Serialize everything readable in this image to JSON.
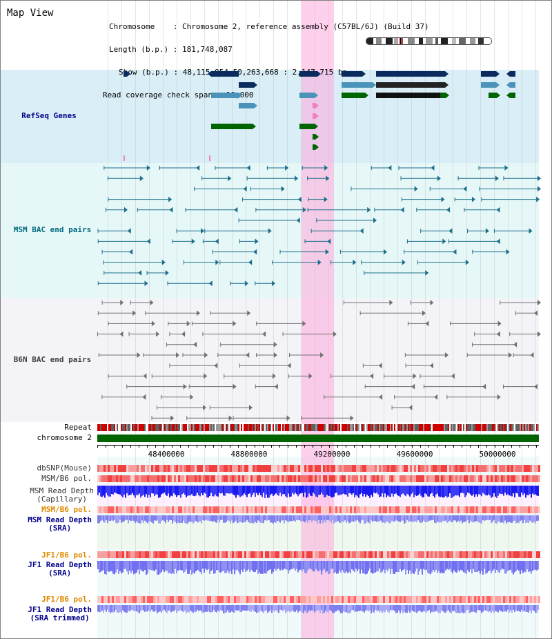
{
  "header": {
    "title": "Map View",
    "info_lines": [
      "Chromosome    : Chromosome 2, reference assembly (C57BL/6J) (Build 37)",
      "Length (b.p.) : 181,748,087",
      "Show (b.p.) : 48,115,954-50,263,668 : 2,147,715 bp",
      "Read coverage check span : 10,000"
    ]
  },
  "tracks": {
    "refseq": "RefSeq Genes",
    "msm_bac": "MSM BAC end pairs",
    "b6n_bac": "B6N BAC end pairs",
    "repeat": "Repeat",
    "chromosome": "chromosome 2",
    "dbsnp": "dbSNP(Mouse)",
    "msm_b6_pol_1": "MSM/B6 pol.",
    "msm_read_depth_cap": "MSM Read Depth\n(Capillary)",
    "msm_b6_pol_2": "MSM/B6 pol.",
    "msm_read_depth_sra": "MSM Read Depth\n(SRA)",
    "jf1_b6_pol_1": "JF1/B6 pol.",
    "jf1_read_depth_sra": "JF1 Read Depth\n(SRA)",
    "jf1_b6_pol_2": "JF1/B6 pol.",
    "jf1_read_depth_trim": "JF1 Read Depth\n(SRA trimmed)"
  },
  "axis": {
    "ticks": [
      "48400000",
      "48800000",
      "49200000",
      "49600000",
      "50000000"
    ]
  },
  "colors": {
    "refseq_bg": "#d9eef7",
    "msm_bg": "#e6f7f7",
    "b6n_bg": "#f4f4f8",
    "highlight": "#ffaadc",
    "navy": "#0b2b5e",
    "steel": "#4b93b8",
    "green": "#006400"
  }
}
